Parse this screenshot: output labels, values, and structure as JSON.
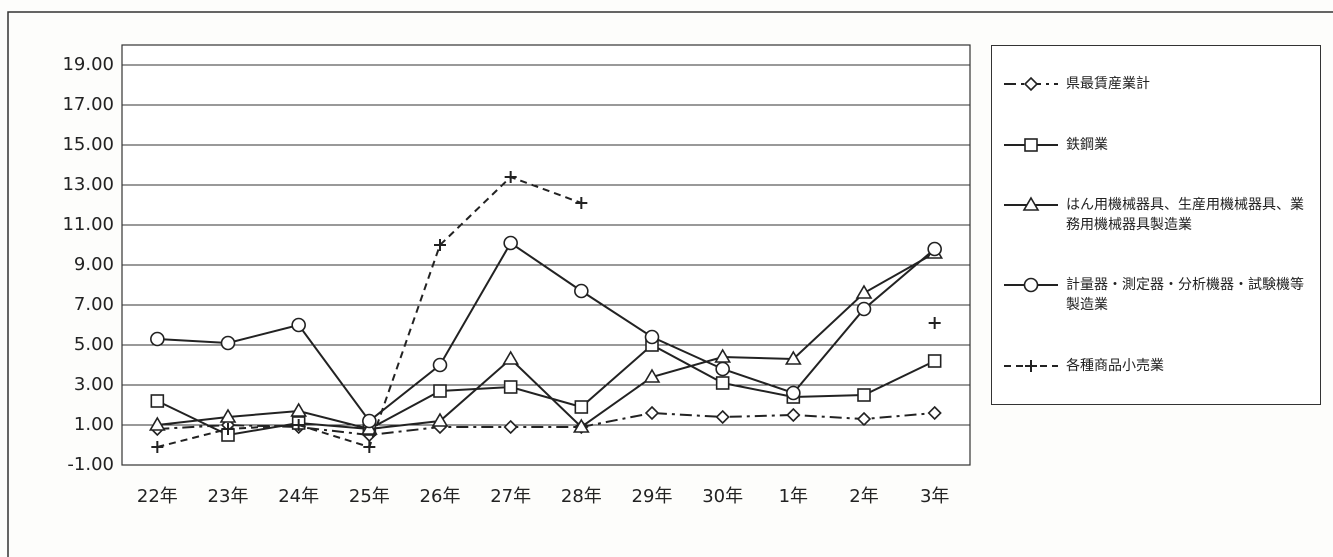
{
  "chart_data": {
    "type": "line",
    "categories": [
      "22年",
      "23年",
      "24年",
      "25年",
      "26年",
      "27年",
      "28年",
      "29年",
      "30年",
      "1年",
      "2年",
      "3年"
    ],
    "series": [
      {
        "name": "県最賃産業計",
        "color": "#222",
        "marker": "diamond",
        "line_style": "dashdot",
        "values": [
          0.8,
          1.0,
          0.9,
          0.5,
          0.9,
          0.9,
          0.9,
          1.6,
          1.4,
          1.5,
          1.3,
          1.6
        ]
      },
      {
        "name": "鉄鋼業",
        "color": "#222",
        "marker": "square",
        "line_style": "solid",
        "values": [
          2.2,
          0.5,
          1.1,
          0.8,
          2.7,
          2.9,
          1.9,
          5.0,
          3.1,
          2.4,
          2.5,
          4.2
        ]
      },
      {
        "name": "はん用機械器具、生産用機械器具、業務用機械器具製造業",
        "color": "#222",
        "marker": "triangle",
        "line_style": "solid",
        "values": [
          1.0,
          1.4,
          1.7,
          0.8,
          1.2,
          4.3,
          0.9,
          3.4,
          4.4,
          4.3,
          7.6,
          9.6
        ]
      },
      {
        "name": "計量器・測定器・分析機器・試験機等製造業",
        "color": "#222",
        "marker": "circle",
        "line_style": "solid",
        "values": [
          5.3,
          5.1,
          6.0,
          1.2,
          4.0,
          10.1,
          7.7,
          5.4,
          3.8,
          2.6,
          6.8,
          9.8
        ]
      },
      {
        "name": "各種商品小売業",
        "color": "#222",
        "marker": "plus",
        "line_style": "dashed",
        "values": [
          -0.1,
          0.8,
          1.0,
          -0.1,
          10.0,
          13.4,
          12.1,
          null,
          null,
          null,
          null,
          6.1
        ]
      }
    ],
    "ylim": [
      -1,
      20
    ],
    "yticks": [
      {
        "value": -1,
        "label": "-1.00"
      },
      {
        "value": 1,
        "label": "1.00"
      },
      {
        "value": 3,
        "label": "3.00"
      },
      {
        "value": 5,
        "label": "5.00"
      },
      {
        "value": 7,
        "label": "7.00"
      },
      {
        "value": 9,
        "label": "9.00"
      },
      {
        "value": 11,
        "label": "11.00"
      },
      {
        "value": 13,
        "label": "13.00"
      },
      {
        "value": 15,
        "label": "15.00"
      },
      {
        "value": 17,
        "label": "17.00"
      },
      {
        "value": 19,
        "label": "19.00"
      }
    ],
    "grid": true,
    "legend": "right"
  }
}
